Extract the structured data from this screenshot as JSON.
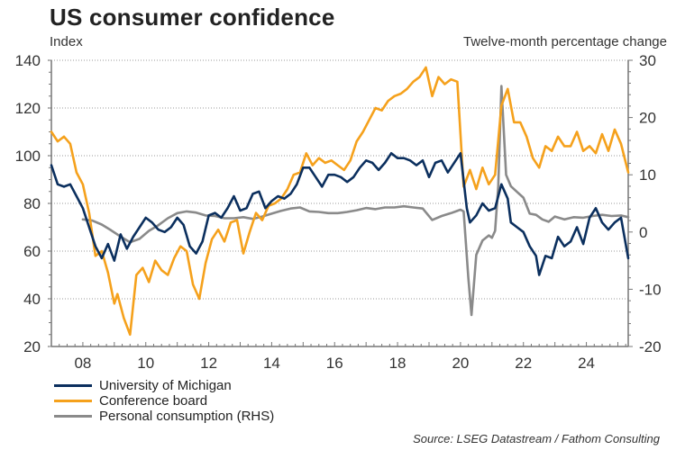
{
  "chart_data": {
    "type": "line",
    "title": "US consumer confidence",
    "ylabel_left": "Index",
    "ylabel_right": "Twelve-month percentage change",
    "xlabel": "",
    "x_range": [
      2007.0,
      2025.33
    ],
    "ylim_left": [
      20,
      140
    ],
    "ylim_right": [
      -20,
      30
    ],
    "yticks_left": [
      "20",
      "40",
      "60",
      "80",
      "100",
      "120",
      "140"
    ],
    "yticks_right": [
      "-20",
      "-10",
      "0",
      "10",
      "20",
      "30"
    ],
    "xticks": [
      {
        "x": 2008,
        "label": "08"
      },
      {
        "x": 2010,
        "label": "10"
      },
      {
        "x": 2012,
        "label": "12"
      },
      {
        "x": 2014,
        "label": "14"
      },
      {
        "x": 2016,
        "label": "16"
      },
      {
        "x": 2018,
        "label": "18"
      },
      {
        "x": 2020,
        "label": "20"
      },
      {
        "x": 2022,
        "label": "22"
      },
      {
        "x": 2024,
        "label": "24"
      }
    ],
    "grid": "horizontal-dotted",
    "legend_position": "bottom-left",
    "series": [
      {
        "name": "University of Michigan",
        "axis": "left",
        "color": "#0b2f5e",
        "x": [
          2007.0,
          2007.2,
          2007.4,
          2007.6,
          2007.8,
          2008.0,
          2008.2,
          2008.4,
          2008.6,
          2008.8,
          2009.0,
          2009.2,
          2009.4,
          2009.6,
          2009.8,
          2010.0,
          2010.2,
          2010.4,
          2010.6,
          2010.8,
          2011.0,
          2011.2,
          2011.4,
          2011.6,
          2011.8,
          2012.0,
          2012.2,
          2012.4,
          2012.6,
          2012.8,
          2013.0,
          2013.2,
          2013.4,
          2013.6,
          2013.8,
          2014.0,
          2014.2,
          2014.4,
          2014.6,
          2014.8,
          2015.0,
          2015.2,
          2015.4,
          2015.6,
          2015.8,
          2016.0,
          2016.2,
          2016.4,
          2016.6,
          2016.8,
          2017.0,
          2017.2,
          2017.4,
          2017.6,
          2017.8,
          2018.0,
          2018.2,
          2018.4,
          2018.6,
          2018.8,
          2019.0,
          2019.2,
          2019.4,
          2019.6,
          2019.8,
          2020.0,
          2020.2,
          2020.3,
          2020.5,
          2020.7,
          2020.9,
          2021.1,
          2021.3,
          2021.5,
          2021.6,
          2021.8,
          2022.0,
          2022.2,
          2022.4,
          2022.5,
          2022.7,
          2022.9,
          2023.1,
          2023.3,
          2023.5,
          2023.7,
          2023.9,
          2024.1,
          2024.3,
          2024.5,
          2024.7,
          2024.9,
          2025.1,
          2025.33
        ],
        "values": [
          96,
          88,
          87,
          88,
          83,
          78,
          70,
          62,
          57,
          63,
          56,
          67,
          61,
          66,
          70,
          74,
          72,
          69,
          68,
          70,
          74,
          71,
          62,
          59,
          64,
          75,
          76,
          74,
          78,
          83,
          77,
          78,
          84,
          85,
          78,
          81,
          83,
          82,
          84,
          88,
          95,
          95,
          91,
          87,
          92,
          92,
          91,
          89,
          91,
          95,
          98,
          97,
          94,
          97,
          101,
          99,
          99,
          98,
          96,
          98,
          91,
          97,
          98,
          93,
          97,
          101,
          78,
          72,
          75,
          80,
          77,
          78,
          88,
          82,
          72,
          70,
          68,
          62,
          58,
          50,
          58,
          57,
          66,
          62,
          64,
          70,
          63,
          74,
          78,
          72,
          69,
          72,
          74,
          57
        ]
      },
      {
        "name": "Conference board",
        "axis": "left",
        "color": "#f5a11c",
        "x": [
          2007.0,
          2007.2,
          2007.4,
          2007.6,
          2007.8,
          2008.0,
          2008.2,
          2008.4,
          2008.6,
          2008.8,
          2009.0,
          2009.1,
          2009.3,
          2009.5,
          2009.7,
          2009.9,
          2010.1,
          2010.3,
          2010.5,
          2010.7,
          2010.9,
          2011.1,
          2011.3,
          2011.5,
          2011.7,
          2011.9,
          2012.1,
          2012.3,
          2012.5,
          2012.7,
          2012.9,
          2013.1,
          2013.3,
          2013.5,
          2013.7,
          2013.9,
          2014.1,
          2014.3,
          2014.5,
          2014.7,
          2014.9,
          2015.1,
          2015.3,
          2015.5,
          2015.7,
          2015.9,
          2016.1,
          2016.3,
          2016.5,
          2016.7,
          2016.9,
          2017.1,
          2017.3,
          2017.5,
          2017.7,
          2017.9,
          2018.1,
          2018.3,
          2018.5,
          2018.7,
          2018.9,
          2019.1,
          2019.3,
          2019.5,
          2019.7,
          2019.9,
          2020.1,
          2020.3,
          2020.5,
          2020.7,
          2020.9,
          2021.1,
          2021.3,
          2021.5,
          2021.7,
          2021.9,
          2022.1,
          2022.3,
          2022.5,
          2022.7,
          2022.9,
          2023.1,
          2023.3,
          2023.5,
          2023.7,
          2023.9,
          2024.1,
          2024.3,
          2024.5,
          2024.7,
          2024.9,
          2025.1,
          2025.33
        ],
        "values": [
          110,
          106,
          108,
          105,
          93,
          88,
          76,
          58,
          60,
          51,
          38,
          42,
          32,
          25,
          50,
          53,
          47,
          56,
          52,
          50,
          57,
          62,
          60,
          46,
          40,
          55,
          65,
          69,
          64,
          72,
          73,
          59,
          68,
          76,
          73,
          79,
          80,
          82,
          86,
          92,
          93,
          101,
          96,
          99,
          97,
          98,
          96,
          94,
          98,
          106,
          110,
          115,
          120,
          119,
          123,
          125,
          126,
          128,
          131,
          133,
          137,
          125,
          133,
          130,
          132,
          131,
          87,
          94,
          86,
          95,
          88,
          92,
          121,
          128,
          114,
          114,
          108,
          99,
          95,
          104,
          102,
          108,
          104,
          104,
          110,
          102,
          104,
          101,
          109,
          102,
          111,
          105,
          93
        ]
      },
      {
        "name": "Personal consumption (RHS)",
        "axis": "right",
        "color": "#8a8a8a",
        "x": [
          2008.0,
          2008.3,
          2008.6,
          2008.9,
          2009.2,
          2009.5,
          2009.8,
          2010.1,
          2010.4,
          2010.7,
          2011.0,
          2011.3,
          2011.6,
          2011.9,
          2012.2,
          2012.5,
          2012.8,
          2013.1,
          2013.4,
          2013.7,
          2014.0,
          2014.3,
          2014.6,
          2014.9,
          2015.2,
          2015.5,
          2015.8,
          2016.1,
          2016.4,
          2016.7,
          2017.0,
          2017.3,
          2017.6,
          2017.9,
          2018.2,
          2018.5,
          2018.8,
          2019.1,
          2019.4,
          2019.7,
          2020.0,
          2020.1,
          2020.25,
          2020.35,
          2020.5,
          2020.7,
          2020.9,
          2021.0,
          2021.1,
          2021.2,
          2021.3,
          2021.45,
          2021.6,
          2021.8,
          2022.0,
          2022.2,
          2022.4,
          2022.6,
          2022.8,
          2023.0,
          2023.3,
          2023.6,
          2023.9,
          2024.2,
          2024.5,
          2024.8,
          2025.1,
          2025.33
        ],
        "values": [
          2.2,
          2.0,
          1.3,
          0.3,
          -0.8,
          -1.8,
          -1.2,
          0.2,
          1.2,
          2.4,
          3.3,
          3.6,
          3.4,
          2.9,
          2.8,
          2.4,
          2.4,
          2.6,
          2.3,
          2.7,
          3.2,
          3.7,
          4.1,
          4.3,
          3.6,
          3.5,
          3.3,
          3.3,
          3.5,
          3.8,
          4.2,
          4.0,
          4.3,
          4.3,
          4.5,
          4.3,
          4.1,
          2.1,
          2.8,
          3.3,
          3.9,
          3.6,
          -8.0,
          -14.5,
          -4.0,
          -1.5,
          -0.6,
          -1.0,
          0.2,
          8.0,
          25.5,
          10.0,
          8.0,
          7.0,
          6.0,
          3.2,
          3.0,
          2.2,
          1.8,
          2.7,
          2.2,
          2.6,
          2.5,
          2.8,
          3.0,
          2.8,
          2.9,
          2.6
        ]
      }
    ],
    "legend": [
      "University of Michigan",
      "Conference board",
      "Personal consumption (RHS)"
    ],
    "source": "Source: LSEG Datastream / Fathom Consulting"
  }
}
